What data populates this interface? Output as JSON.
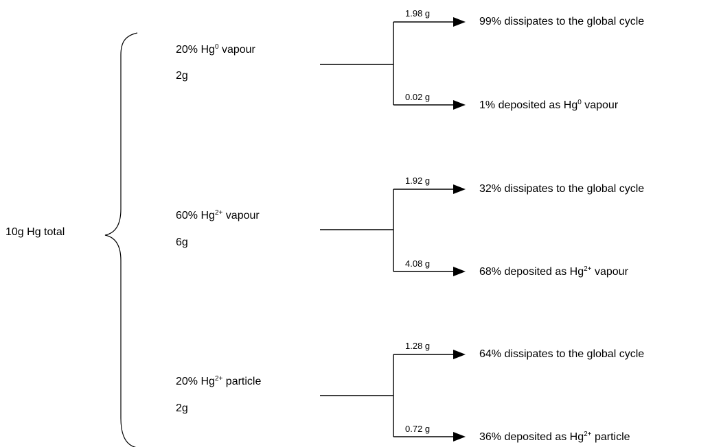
{
  "total": {
    "label": "10g Hg total"
  },
  "groups": [
    {
      "pct": "20%",
      "species": "Hg",
      "charge": "0",
      "form": "vapour",
      "mass": "2g",
      "branches": [
        {
          "amount": "1.98 g",
          "pct": "99%",
          "text": "dissipates to the global cycle"
        },
        {
          "amount": "0.02 g",
          "pct": "1%",
          "text": "deposited as",
          "species": "Hg",
          "charge": "0",
          "form": "vapour"
        }
      ]
    },
    {
      "pct": "60%",
      "species": "Hg",
      "charge": "2+",
      "form": "vapour",
      "mass": "6g",
      "branches": [
        {
          "amount": "1.92 g",
          "pct": "32%",
          "text": "dissipates to the global cycle"
        },
        {
          "amount": "4.08 g",
          "pct": "68%",
          "text": "deposited as",
          "species": "Hg",
          "charge": "2+",
          "form": "vapour"
        }
      ]
    },
    {
      "pct": "20%",
      "species": "Hg",
      "charge": "2+",
      "form": "particle",
      "mass": "2g",
      "branches": [
        {
          "amount": "1.28 g",
          "pct": "64%",
          "text": "dissipates to the global cycle"
        },
        {
          "amount": "0.72 g",
          "pct": "36%",
          "text": "deposited as",
          "species": "Hg",
          "charge": "2+",
          "form": "particle"
        }
      ]
    }
  ]
}
